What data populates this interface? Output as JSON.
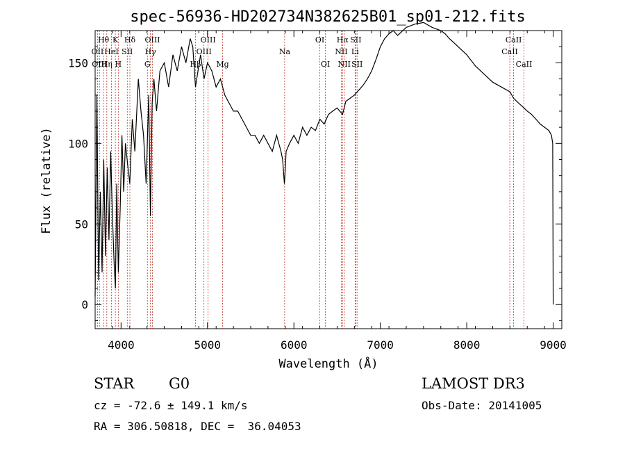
{
  "chart_data": {
    "type": "line",
    "title": "spec-56936-HD202734N382625B01_sp01-212.fits",
    "xlabel": "Wavelength (Å)",
    "ylabel": "Flux (relative)",
    "xlim": [
      3700,
      9100
    ],
    "ylim": [
      -15,
      170
    ],
    "xticks": [
      4000,
      5000,
      6000,
      7000,
      8000,
      9000
    ],
    "yticks": [
      0,
      50,
      100,
      150
    ],
    "grid": false,
    "spectrum": {
      "x": [
        3700,
        3720,
        3740,
        3760,
        3780,
        3800,
        3820,
        3840,
        3860,
        3880,
        3900,
        3920,
        3935,
        3950,
        3968,
        3990,
        4010,
        4030,
        4050,
        4080,
        4101,
        4130,
        4160,
        4200,
        4230,
        4260,
        4290,
        4320,
        4340,
        4360,
        4380,
        4410,
        4450,
        4500,
        4550,
        4600,
        4650,
        4700,
        4750,
        4800,
        4830,
        4861,
        4890,
        4920,
        4960,
        5000,
        5050,
        5100,
        5150,
        5200,
        5250,
        5300,
        5350,
        5400,
        5450,
        5500,
        5550,
        5600,
        5650,
        5700,
        5750,
        5800,
        5850,
        5870,
        5890,
        5896,
        5910,
        5950,
        6000,
        6050,
        6100,
        6150,
        6200,
        6250,
        6300,
        6350,
        6400,
        6450,
        6500,
        6563,
        6600,
        6650,
        6700,
        6750,
        6800,
        6850,
        6900,
        6950,
        7000,
        7050,
        7100,
        7150,
        7200,
        7300,
        7400,
        7500,
        7600,
        7700,
        7750,
        7800,
        7900,
        8000,
        8100,
        8200,
        8300,
        8400,
        8500,
        8542,
        8600,
        8662,
        8700,
        8750,
        8800,
        8850,
        8900,
        8950,
        8980,
        8995,
        9000
      ],
      "y": [
        5,
        130,
        15,
        70,
        20,
        90,
        30,
        85,
        40,
        95,
        55,
        25,
        10,
        75,
        20,
        60,
        105,
        70,
        100,
        85,
        75,
        115,
        95,
        140,
        120,
        105,
        75,
        130,
        55,
        125,
        140,
        120,
        145,
        150,
        135,
        155,
        145,
        160,
        150,
        165,
        160,
        135,
        145,
        155,
        140,
        150,
        145,
        135,
        140,
        130,
        125,
        120,
        120,
        115,
        110,
        105,
        105,
        100,
        105,
        100,
        95,
        105,
        95,
        90,
        75,
        80,
        95,
        100,
        105,
        100,
        110,
        105,
        110,
        108,
        115,
        112,
        118,
        120,
        122,
        118,
        126,
        128,
        130,
        133,
        136,
        140,
        145,
        152,
        160,
        165,
        168,
        170,
        167,
        172,
        174,
        175,
        172,
        170,
        168,
        165,
        160,
        155,
        148,
        143,
        138,
        135,
        132,
        128,
        125,
        122,
        120,
        118,
        115,
        112,
        110,
        108,
        105,
        100,
        0
      ]
    },
    "emission_lines": [
      {
        "name": "Hθ",
        "x": 3797,
        "row": 1
      },
      {
        "name": "OII",
        "x": 3727,
        "row": 2
      },
      {
        "name": "OIII",
        "x": 3750,
        "row": 3
      },
      {
        "name": "K",
        "x": 3934,
        "row": 1
      },
      {
        "name": "HeI",
        "x": 3889,
        "row": 2
      },
      {
        "name": "Hη",
        "x": 3835,
        "row": 3
      },
      {
        "name": "Hδ",
        "x": 4102,
        "row": 1
      },
      {
        "name": "SII",
        "x": 4072,
        "row": 2
      },
      {
        "name": "H",
        "x": 3968,
        "row": 3
      },
      {
        "name": "OIII",
        "x": 4363,
        "row": 1
      },
      {
        "name": "Hγ",
        "x": 4340,
        "row": 2
      },
      {
        "name": "G",
        "x": 4305,
        "row": 3
      },
      {
        "name": "OIII",
        "x": 5007,
        "row": 1
      },
      {
        "name": "OIII",
        "x": 4959,
        "row": 2
      },
      {
        "name": "Hβ",
        "x": 4861,
        "row": 3
      },
      {
        "name": "Mg",
        "x": 5175,
        "row": 3
      },
      {
        "name": "Na",
        "x": 5893,
        "row": 2
      },
      {
        "name": "OI",
        "x": 6300,
        "row": 1
      },
      {
        "name": "OI",
        "x": 6364,
        "row": 3
      },
      {
        "name": "Hα",
        "x": 6563,
        "row": 1
      },
      {
        "name": "NII",
        "x": 6548,
        "row": 2
      },
      {
        "name": "NII",
        "x": 6583,
        "row": 3
      },
      {
        "name": "SII",
        "x": 6716,
        "row": 1
      },
      {
        "name": "Li",
        "x": 6708,
        "row": 2
      },
      {
        "name": "SII",
        "x": 6731,
        "row": 3
      },
      {
        "name": "CaII",
        "x": 8542,
        "row": 1
      },
      {
        "name": "CaII",
        "x": 8498,
        "row": 2
      },
      {
        "name": "CaII",
        "x": 8662,
        "row": 3
      }
    ]
  },
  "info": {
    "object_class": "STAR",
    "subclass": "G0",
    "survey": "LAMOST DR3",
    "redshift_text": "cz = -72.6 ± 149.1 km/s",
    "obs_date_text": "Obs-Date: 20141005",
    "coords_text": "RA = 306.50818, DEC =  36.04053"
  }
}
